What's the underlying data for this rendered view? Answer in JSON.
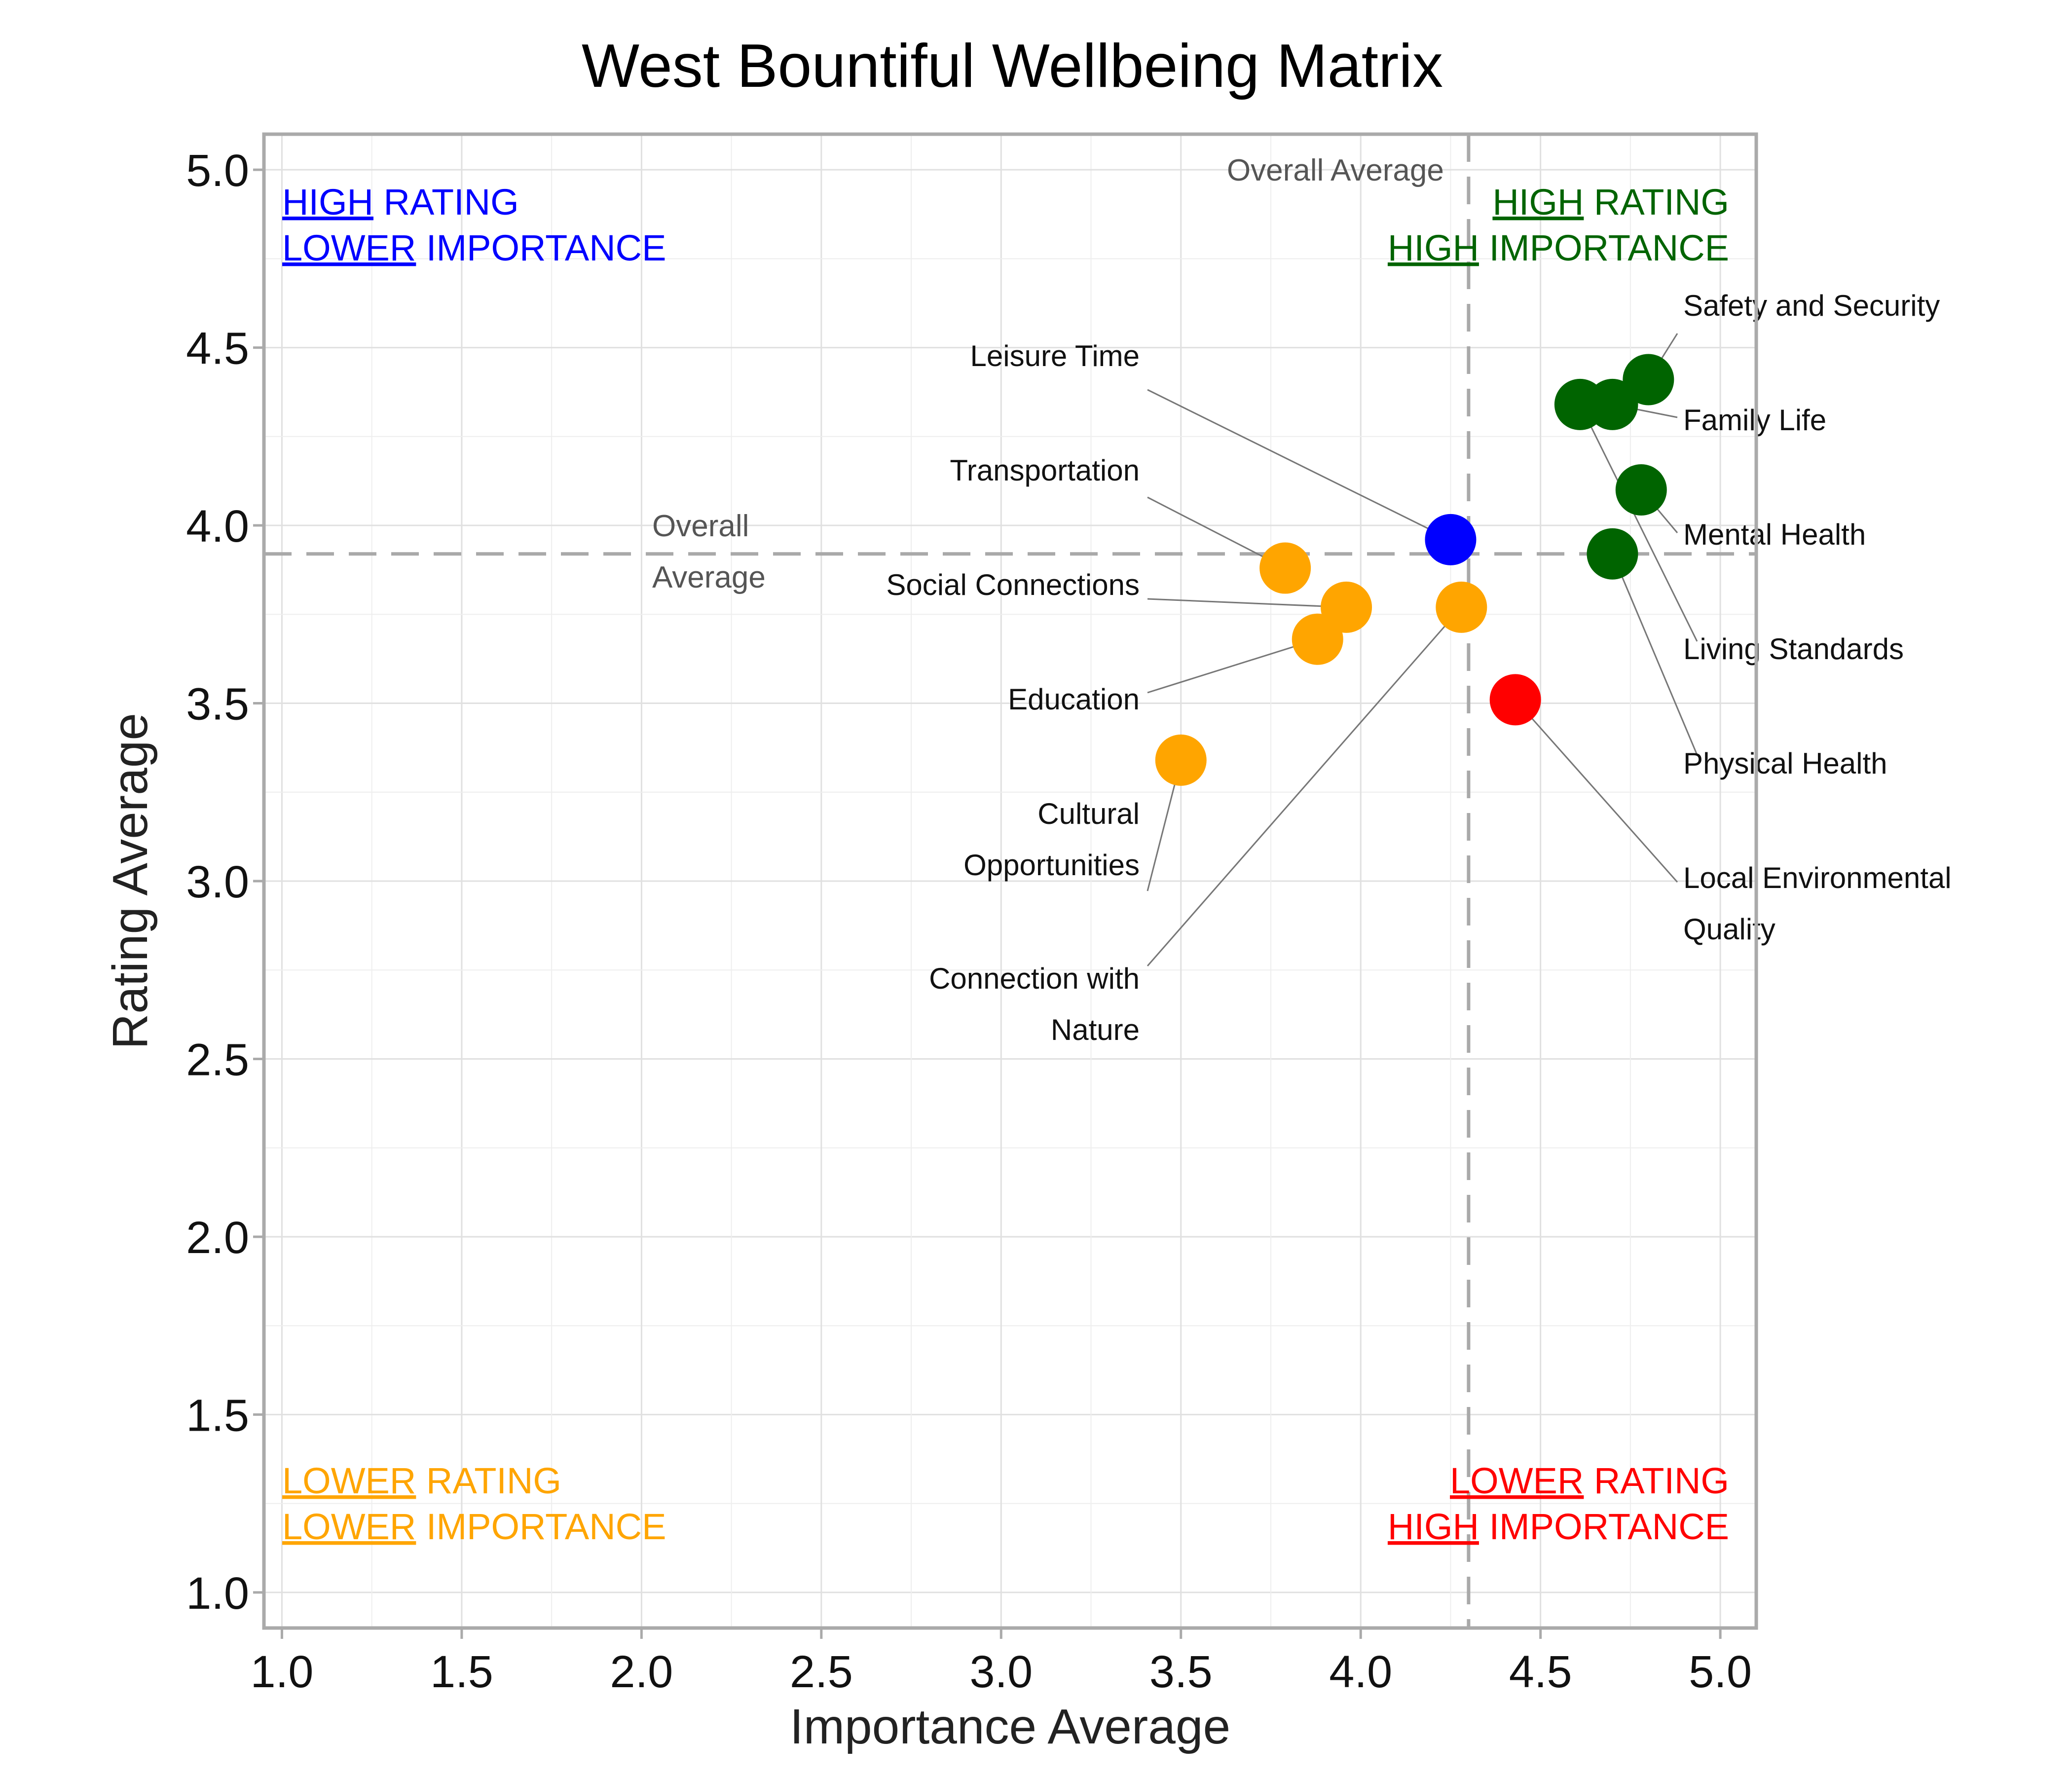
{
  "chart_data": {
    "type": "scatter",
    "title": "West Bountiful Wellbeing Matrix",
    "xlabel": "Importance Average",
    "ylabel": "Rating Average",
    "xlim": [
      0.95,
      5.1
    ],
    "ylim": [
      0.9,
      5.1
    ],
    "xticks": [
      "1.0",
      "1.5",
      "2.0",
      "2.5",
      "3.0",
      "3.5",
      "4.0",
      "4.5",
      "5.0"
    ],
    "yticks": [
      "1.0",
      "1.5",
      "2.0",
      "2.5",
      "3.0",
      "3.5",
      "4.0",
      "4.5",
      "5.0"
    ],
    "grid": true,
    "overall_average": {
      "x": 4.3,
      "y": 3.92,
      "x_label": "Overall Average",
      "y_label": [
        "Overall",
        "Average"
      ]
    },
    "quadrant_colors": {
      "high_rating_high_importance": "#006400",
      "high_rating_lower_importance": "#0000ff",
      "lower_rating_lower_importance": "#ffa500",
      "lower_rating_high_importance": "#ff0000"
    },
    "quadrants": [
      {
        "key": "high_rating_lower_importance",
        "line1": [
          "HIGH",
          " RATING"
        ],
        "line2": [
          "LOWER",
          " IMPORTANCE"
        ],
        "color": "#0000ff"
      },
      {
        "key": "high_rating_high_importance",
        "line1": [
          "HIGH",
          " RATING"
        ],
        "line2": [
          "HIGH",
          " IMPORTANCE"
        ],
        "color": "#006400"
      },
      {
        "key": "lower_rating_lower_importance",
        "line1": [
          "LOWER",
          " RATING"
        ],
        "line2": [
          "LOWER",
          " IMPORTANCE"
        ],
        "color": "#ffa500"
      },
      {
        "key": "lower_rating_high_importance",
        "line1": [
          "LOWER",
          " RATING"
        ],
        "line2": [
          "HIGH",
          " IMPORTANCE"
        ],
        "color": "#ff0000"
      }
    ],
    "points": [
      {
        "label": [
          "Safety and Security"
        ],
        "x": 4.8,
        "y": 4.41,
        "color": "#006400"
      },
      {
        "label": [
          "Family Life"
        ],
        "x": 4.7,
        "y": 4.34,
        "color": "#006400"
      },
      {
        "label": [
          "Mental Health"
        ],
        "x": 4.78,
        "y": 4.1,
        "color": "#006400"
      },
      {
        "label": [
          "Living Standards"
        ],
        "x": 4.61,
        "y": 4.34,
        "color": "#006400"
      },
      {
        "label": [
          "Physical Health"
        ],
        "x": 4.7,
        "y": 3.92,
        "color": "#006400"
      },
      {
        "label": [
          "Local Environmental",
          "Quality"
        ],
        "x": 4.43,
        "y": 3.51,
        "color": "#ff0000"
      },
      {
        "label": [
          "Leisure Time"
        ],
        "x": 4.25,
        "y": 3.96,
        "color": "#0000ff"
      },
      {
        "label": [
          "Transportation"
        ],
        "x": 3.79,
        "y": 3.88,
        "color": "#ffa500"
      },
      {
        "label": [
          "Social Connections"
        ],
        "x": 3.96,
        "y": 3.77,
        "color": "#ffa500"
      },
      {
        "label": [
          "Education"
        ],
        "x": 3.88,
        "y": 3.68,
        "color": "#ffa500"
      },
      {
        "label": [
          "Cultural",
          "Opportunities"
        ],
        "x": 3.5,
        "y": 3.34,
        "color": "#ffa500"
      },
      {
        "label": [
          "Connection with",
          "Nature"
        ],
        "x": 4.28,
        "y": 3.77,
        "color": "#ffa500"
      }
    ]
  }
}
